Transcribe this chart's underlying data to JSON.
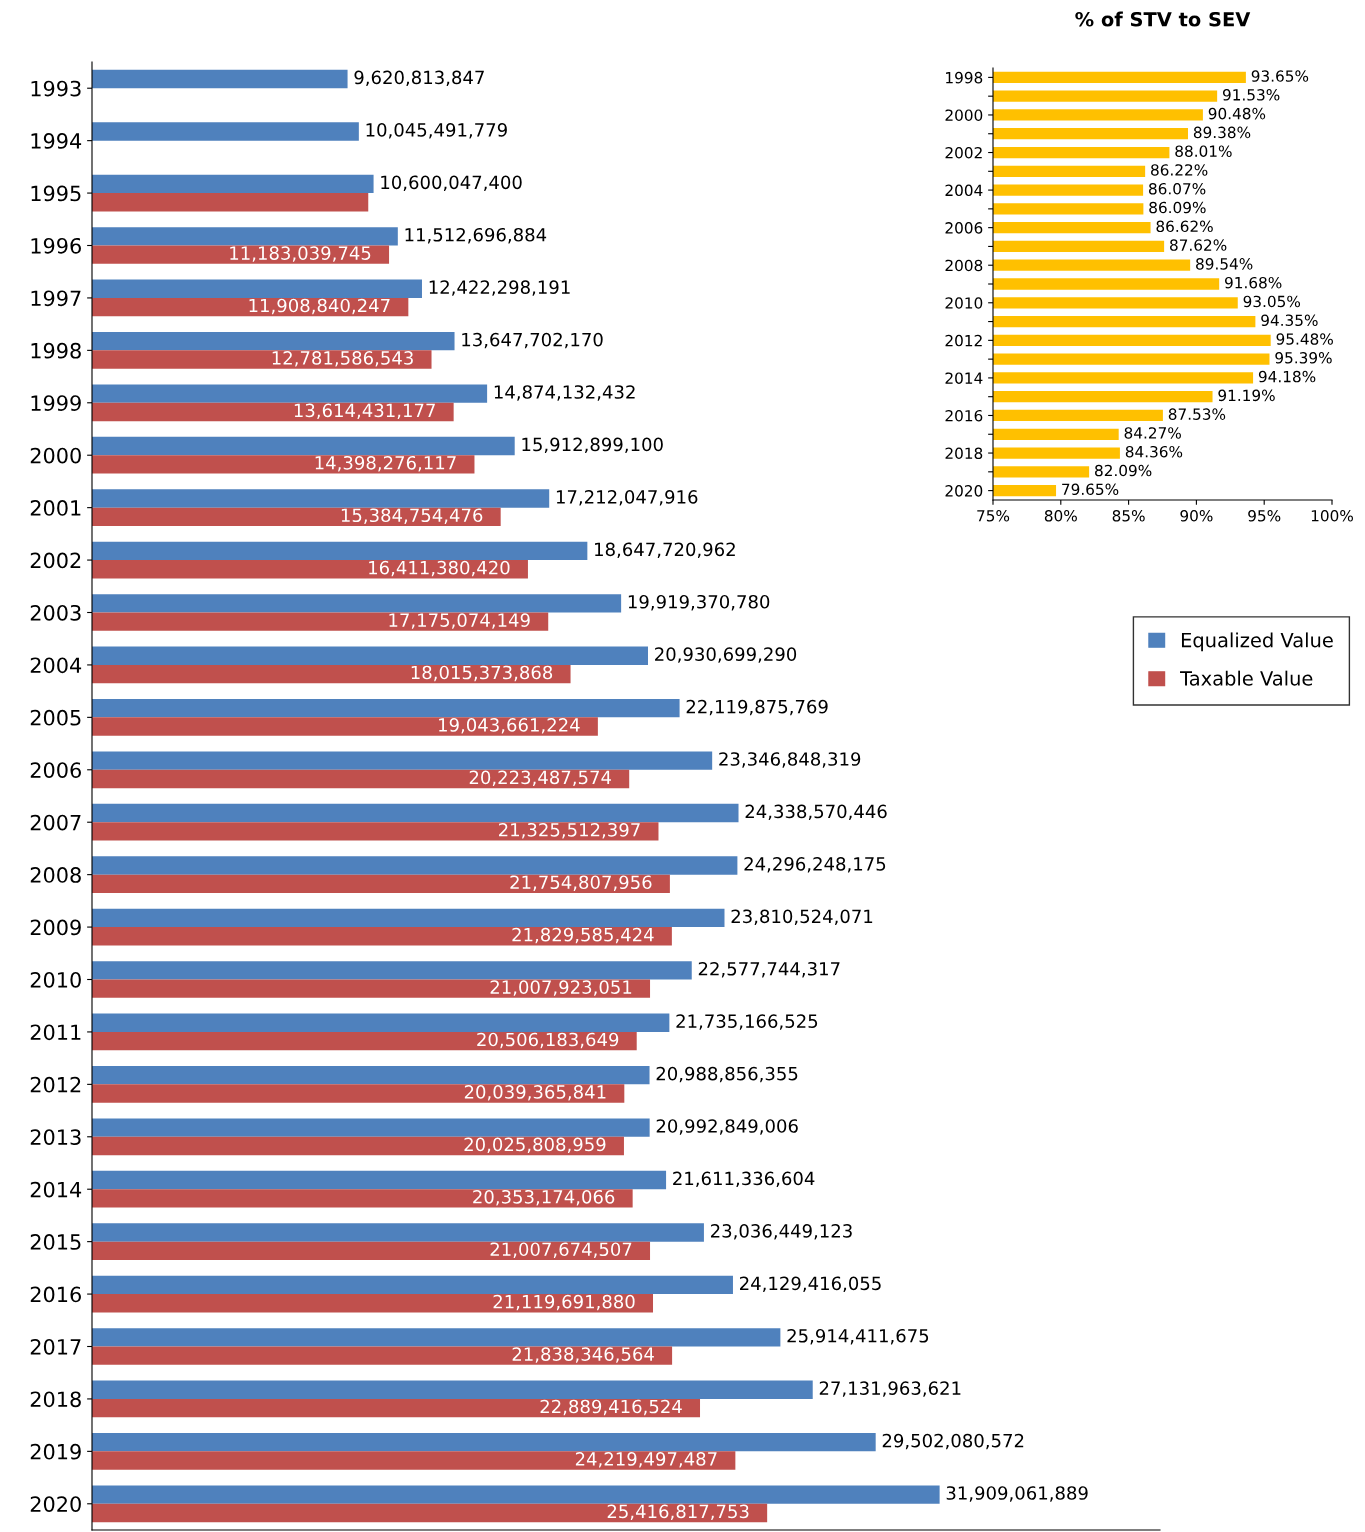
{
  "chart_data": [
    {
      "type": "bar",
      "orientation": "horizontal",
      "categories": [
        "1993",
        "1994",
        "1995",
        "1996",
        "1997",
        "1998",
        "1999",
        "2000",
        "2001",
        "2002",
        "2003",
        "2004",
        "2005",
        "2006",
        "2007",
        "2008",
        "2009",
        "2010",
        "2011",
        "2012",
        "2013",
        "2014",
        "2015",
        "2016",
        "2017",
        "2018",
        "2019",
        "2020"
      ],
      "series": [
        {
          "name": "Equalized Value",
          "color": "#4f81bd",
          "values": [
            9620813847,
            10045491779,
            10600047400,
            11512696884,
            12422298191,
            13647702170,
            14874132432,
            15912899100,
            17212047916,
            18647720962,
            19919370780,
            20930699290,
            22119875769,
            23346848319,
            24338570446,
            24296248175,
            23810524071,
            22577744317,
            21735166525,
            20988856355,
            20992849006,
            21611336604,
            23036449123,
            24129416055,
            25914411675,
            27131963621,
            29502080572,
            31909061889
          ],
          "value_labels": [
            "9,620,813,847",
            "10,045,491,779",
            "10,600,047,400",
            "11,512,696,884",
            "12,422,298,191",
            "13,647,702,170",
            "14,874,132,432",
            "15,912,899,100",
            "17,212,047,916",
            "18,647,720,962",
            "19,919,370,780",
            "20,930,699,290",
            "22,119,875,769",
            "23,346,848,319",
            "24,338,570,446",
            "24,296,248,175",
            "23,810,524,071",
            "22,577,744,317",
            "21,735,166,525",
            "20,988,856,355",
            "20,992,849,006",
            "21,611,336,604",
            "23,036,449,123",
            "24,129,416,055",
            "25,914,411,675",
            "27,131,963,621",
            "29,502,080,572",
            "31,909,061,889"
          ]
        },
        {
          "name": "Taxable Value",
          "color": "#c0504d",
          "values": [
            null,
            null,
            10400000000,
            11183039745,
            11908840247,
            12781586543,
            13614431177,
            14398276117,
            15384754476,
            16411380420,
            17175074149,
            18015373868,
            19043661224,
            20223487574,
            21325512397,
            21754807956,
            21829585424,
            21007923051,
            20506183649,
            20039365841,
            20025808959,
            20353174066,
            21007674507,
            21119691880,
            21838346564,
            22889416524,
            24219497487,
            25416817753
          ],
          "value_labels": [
            null,
            null,
            null,
            "11,183,039,745",
            "11,908,840,247",
            "12,781,586,543",
            "13,614,431,177",
            "14,398,276,117",
            "15,384,754,476",
            "16,411,380,420",
            "17,175,074,149",
            "18,015,373,868",
            "19,043,661,224",
            "20,223,487,574",
            "21,325,512,397",
            "21,754,807,956",
            "21,829,585,424",
            "21,007,923,051",
            "20,506,183,649",
            "20,039,365,841",
            "20,025,808,959",
            "20,353,174,066",
            "21,007,674,507",
            "21,119,691,880",
            "21,838,346,564",
            "22,889,416,524",
            "24,219,497,487",
            "25,416,817,753"
          ]
        }
      ],
      "legend": "right",
      "tick_labels": "y",
      "grid": false
    },
    {
      "type": "bar",
      "orientation": "horizontal",
      "title": "% of STV to SEV",
      "categories": [
        "1998",
        null,
        "2000",
        null,
        "2002",
        null,
        "2004",
        null,
        "2006",
        null,
        "2008",
        null,
        "2010",
        null,
        "2012",
        null,
        "2014",
        null,
        "2016",
        null,
        "2018",
        null,
        "2020"
      ],
      "series": [
        {
          "color": "#ffc000",
          "values": [
            93.65,
            91.53,
            90.48,
            89.38,
            88.01,
            86.22,
            86.07,
            86.09,
            86.62,
            87.62,
            89.54,
            91.68,
            93.05,
            94.35,
            95.48,
            95.39,
            94.18,
            91.19,
            87.53,
            84.27,
            84.36,
            82.09,
            79.65
          ],
          "value_labels": [
            "93.65%",
            "91.53%",
            "90.48%",
            "89.38%",
            "88.01%",
            "86.22%",
            "86.07%",
            "86.09%",
            "86.62%",
            "87.62%",
            "89.54%",
            "91.68%",
            "93.05%",
            "94.35%",
            "95.48%",
            "95.39%",
            "94.18%",
            "91.19%",
            "87.53%",
            "84.27%",
            "84.36%",
            "82.09%",
            "79.65%"
          ]
        }
      ],
      "xlim": [
        75,
        100
      ],
      "xticks": [
        {
          "value": 75,
          "label": "75%"
        },
        {
          "value": 80,
          "label": "80%"
        },
        {
          "value": 85,
          "label": "85%"
        },
        {
          "value": 90,
          "label": "90%"
        },
        {
          "value": 95,
          "label": "95%"
        },
        {
          "value": 100,
          "label": "100%"
        }
      ],
      "grid": false
    }
  ]
}
